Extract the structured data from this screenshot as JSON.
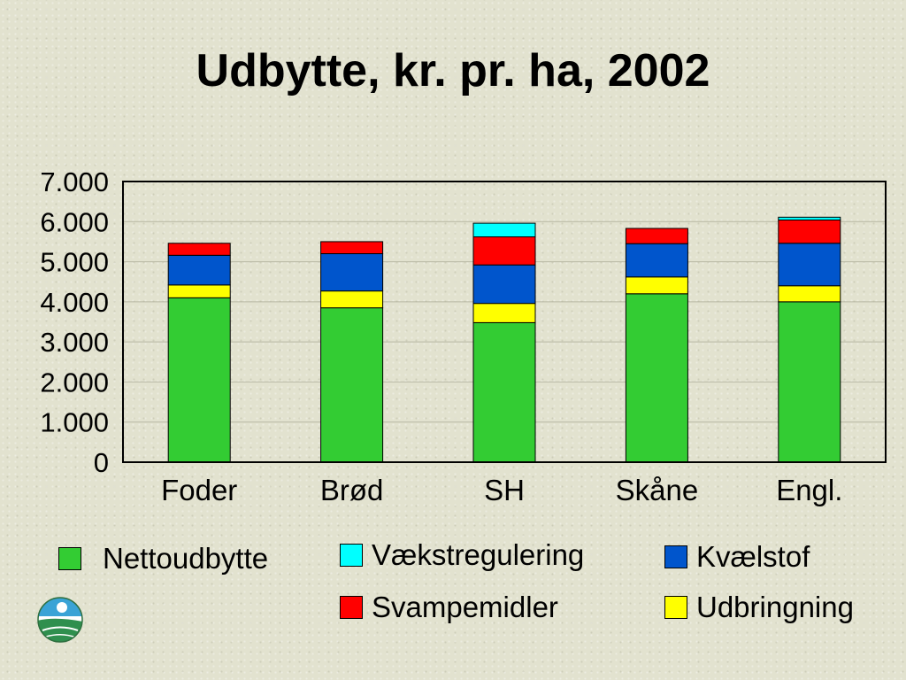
{
  "chart_data": {
    "type": "bar",
    "stacked": true,
    "title": "Udbytte, kr. pr. ha, 2002",
    "categories": [
      "Foder",
      "Brød",
      "SH",
      "Skåne",
      "Engl."
    ],
    "ylim": [
      0,
      7000
    ],
    "yticks": [
      "0",
      "1.000",
      "2.000",
      "3.000",
      "4.000",
      "5.000",
      "6.000",
      "7.000"
    ],
    "ytick_values": [
      0,
      1000,
      2000,
      3000,
      4000,
      5000,
      6000,
      7000
    ],
    "grid": true,
    "legend_position": "bottom",
    "series": [
      {
        "name": "Nettoudbytte",
        "color": "#33cc33",
        "values": [
          4100,
          3850,
          3480,
          4200,
          4000
        ]
      },
      {
        "name": "Udbringning",
        "color": "#ffff00",
        "values": [
          320,
          420,
          480,
          420,
          400
        ]
      },
      {
        "name": "Kvælstof",
        "color": "#0055cc",
        "values": [
          740,
          930,
          960,
          830,
          1060
        ]
      },
      {
        "name": "Svampemidler",
        "color": "#ff0000",
        "values": [
          300,
          300,
          700,
          380,
          580
        ]
      },
      {
        "name": "Vækstregulering",
        "color": "#00ffff",
        "values": [
          0,
          0,
          340,
          0,
          70
        ]
      }
    ]
  },
  "legend": [
    {
      "label": "Nettoudbytte",
      "color": "#33cc33"
    },
    {
      "label": "Vækstregulering",
      "color": "#00ffff"
    },
    {
      "label": "Kvælstof",
      "color": "#0055cc"
    },
    {
      "label": "Svampemidler",
      "color": "#ff0000"
    },
    {
      "label": "Udbringning",
      "color": "#ffff00"
    }
  ],
  "logo_icon": "landscape-logo-icon"
}
